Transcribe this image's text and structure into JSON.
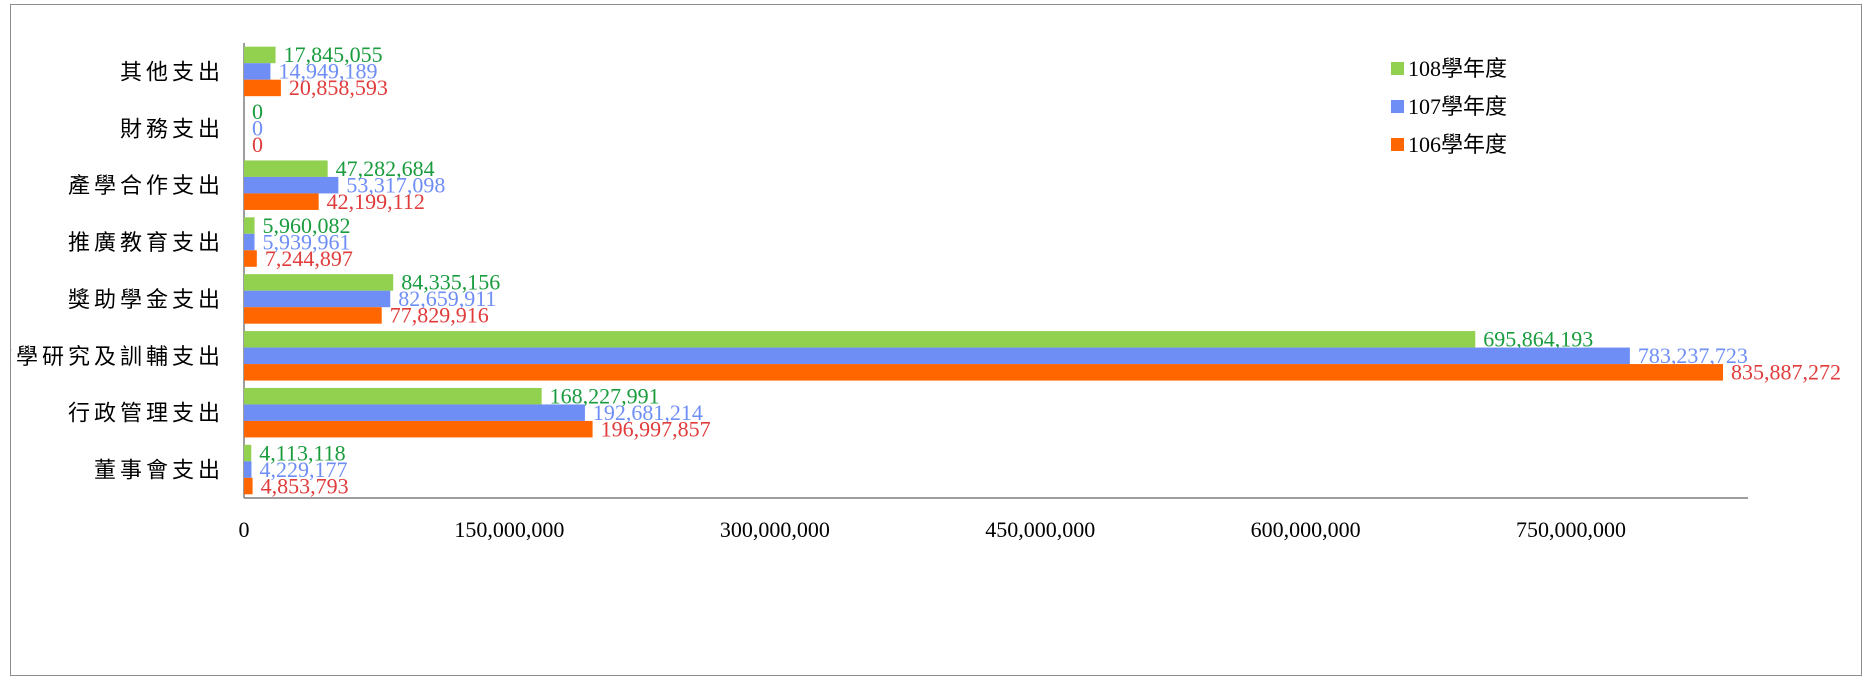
{
  "chart_data": {
    "type": "bar",
    "orientation": "horizontal",
    "title": "",
    "xlabel": "",
    "ylabel": "",
    "categories": [
      "董事會支出",
      "行政管理支出",
      "教學研究及訓輔支出",
      "獎助學金支出",
      "推廣教育支出",
      "產學合作支出",
      "財務支出",
      "其他支出"
    ],
    "series": [
      {
        "name": "106學年度",
        "color": "#ff6600",
        "label_color": "#e03c3c",
        "values": [
          4853793,
          196997857,
          835887272,
          77829916,
          7244897,
          42199112,
          0,
          20858593
        ],
        "labels": [
          "4,853,793",
          "196,997,857",
          "835,887,272",
          "77,829,916",
          "7,244,897",
          "42,199,112",
          "0",
          "20,858,593"
        ]
      },
      {
        "name": "107學年度",
        "color": "#6f8ef5",
        "label_color": "#6f8ef5",
        "values": [
          4229177,
          192681214,
          783237723,
          82659911,
          5939961,
          53317098,
          0,
          14949189
        ],
        "labels": [
          "4,229,177",
          "192,681,214",
          "783,237,723",
          "82,659,911",
          "5,939,961",
          "53,317,098",
          "0",
          "14,949,189"
        ]
      },
      {
        "name": "108學年度",
        "color": "#92d050",
        "label_color": "#1a9c3e",
        "values": [
          4113118,
          168227991,
          695864193,
          84335156,
          5960082,
          47282684,
          0,
          17845055
        ],
        "labels": [
          "4,113,118",
          "168,227,991",
          "695,864,193",
          "84,335,156",
          "5,960,082",
          "47,282,684",
          "0",
          "17,845,055"
        ]
      }
    ],
    "xlim": [
      0,
      850000000
    ],
    "x_ticks": [
      0,
      150000000,
      300000000,
      450000000,
      600000000,
      750000000
    ],
    "x_tick_labels": [
      "0",
      "150,000,000",
      "300,000,000",
      "450,000,000",
      "600,000,000",
      "750,000,000"
    ],
    "grid": false,
    "legend_position": "top-right",
    "legend_order": [
      "108學年度",
      "107學年度",
      "106學年度"
    ]
  }
}
